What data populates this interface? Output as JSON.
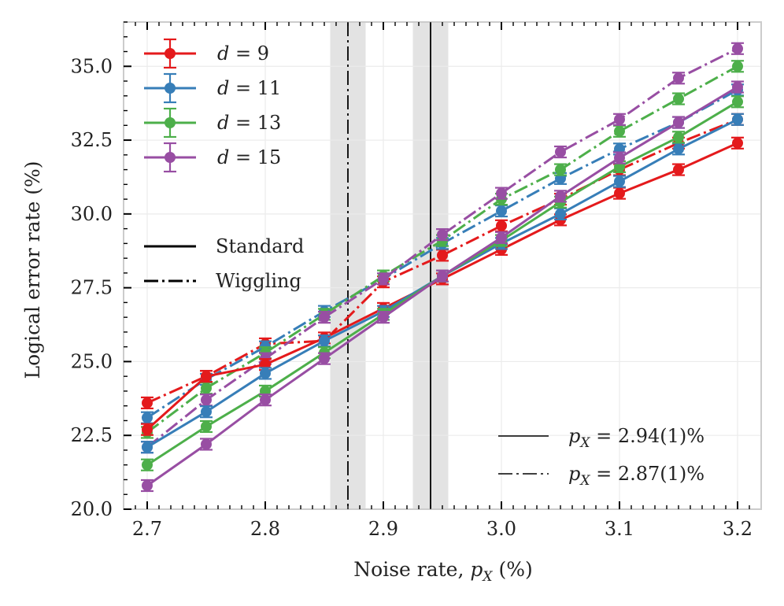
{
  "chart_data": {
    "type": "line",
    "title": "",
    "xlabel": "Noise rate, p_X (%)",
    "ylabel": "Logical error rate (%)",
    "xlim": [
      2.68,
      3.22
    ],
    "ylim": [
      20.0,
      36.5
    ],
    "grid": true,
    "x_ticks": [
      2.7,
      2.8,
      2.9,
      3.0,
      3.1,
      3.2
    ],
    "x_tick_labels": [
      "2.7",
      "2.8",
      "2.9",
      "3.0",
      "3.1",
      "3.2"
    ],
    "y_ticks": [
      20.0,
      22.5,
      25.0,
      27.5,
      30.0,
      32.5,
      35.0
    ],
    "y_tick_labels": [
      "20.0",
      "22.5",
      "25.0",
      "27.5",
      "30.0",
      "32.5",
      "35.0"
    ],
    "x": [
      2.7,
      2.75,
      2.8,
      2.85,
      2.9,
      2.95,
      3.0,
      3.05,
      3.1,
      3.15,
      3.2
    ],
    "colors": {
      "d9": "#e41a1c",
      "d11": "#377eb8",
      "d13": "#4daf4a",
      "d15": "#984ea3",
      "band": "#d9d9d9"
    },
    "series": [
      {
        "name": "d = 9",
        "key": "d9",
        "style": "standard",
        "values": [
          22.7,
          24.5,
          24.9,
          25.8,
          26.8,
          27.8,
          28.8,
          29.8,
          30.7,
          31.5,
          32.4
        ]
      },
      {
        "name": "d = 11",
        "key": "d11",
        "style": "standard",
        "values": [
          22.1,
          23.3,
          24.6,
          25.7,
          26.7,
          27.9,
          29.0,
          30.0,
          31.1,
          32.2,
          33.2
        ]
      },
      {
        "name": "d = 13",
        "key": "d13",
        "style": "standard",
        "values": [
          21.5,
          22.8,
          24.0,
          25.3,
          26.6,
          27.9,
          29.1,
          30.4,
          31.6,
          32.6,
          33.8
        ]
      },
      {
        "name": "d = 15",
        "key": "d15",
        "style": "standard",
        "values": [
          20.8,
          22.2,
          23.7,
          25.1,
          26.5,
          27.9,
          29.2,
          30.6,
          31.9,
          33.1,
          34.3
        ]
      },
      {
        "name": "d = 9",
        "key": "d9",
        "style": "wiggling",
        "values": [
          23.6,
          24.5,
          25.6,
          25.7,
          27.7,
          28.6,
          29.6,
          30.5,
          31.5,
          32.4,
          33.2
        ]
      },
      {
        "name": "d = 11",
        "key": "d11",
        "style": "wiggling",
        "values": [
          23.1,
          24.4,
          25.5,
          26.7,
          27.8,
          29.0,
          30.1,
          31.2,
          32.2,
          33.1,
          34.2
        ]
      },
      {
        "name": "d = 13",
        "key": "d13",
        "style": "wiggling",
        "values": [
          22.6,
          24.1,
          25.3,
          26.6,
          27.9,
          29.1,
          30.5,
          31.5,
          32.8,
          33.9,
          35.0
        ]
      },
      {
        "name": "d = 15",
        "key": "d15",
        "style": "wiggling",
        "values": [
          22.1,
          23.7,
          25.1,
          26.5,
          27.8,
          29.3,
          30.7,
          32.1,
          33.2,
          34.6,
          35.6
        ]
      }
    ],
    "thresholds": [
      {
        "style": "standard",
        "x": 2.94,
        "band": [
          2.925,
          2.955
        ],
        "label": "p_X = 2.94(1)%"
      },
      {
        "style": "wiggling",
        "x": 2.87,
        "band": [
          2.855,
          2.885
        ],
        "label": "p_X = 2.87(1)%"
      }
    ],
    "legend": {
      "placement": "top-left",
      "distance_entries": [
        {
          "var": "d",
          "eq": "= 9",
          "key": "d9"
        },
        {
          "var": "d",
          "eq": "= 11",
          "key": "d11"
        },
        {
          "var": "d",
          "eq": "= 13",
          "key": "d13"
        },
        {
          "var": "d",
          "eq": "= 15",
          "key": "d15"
        }
      ],
      "style_entries": [
        {
          "label": "Standard",
          "style": "standard"
        },
        {
          "label": "Wiggling",
          "style": "wiggling"
        }
      ],
      "threshold_placement": "bottom-right",
      "threshold_entries": [
        {
          "var": "p",
          "sub": "X",
          "value": "= 2.94(1)%",
          "style": "standard"
        },
        {
          "var": "p",
          "sub": "X",
          "value": "= 2.87(1)%",
          "style": "wiggling"
        }
      ]
    },
    "axis_label_parts": {
      "x_prefix": "Noise rate,",
      "x_var": "p",
      "x_sub": "X",
      "x_suffix": "(%)"
    }
  }
}
